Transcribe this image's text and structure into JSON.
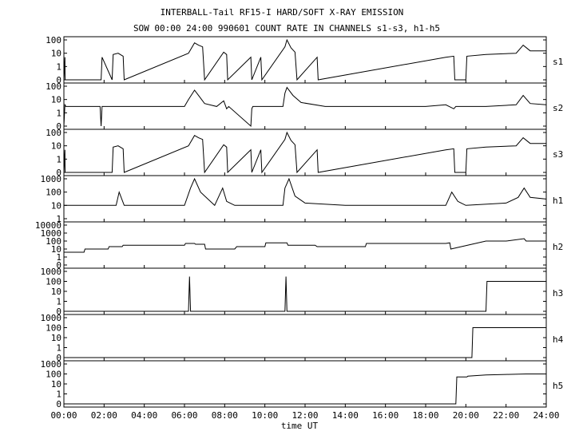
{
  "header": {
    "title": "INTERBALL-Tail RF15-I HARD/SOFT X-RAY EMISSION",
    "subtitle": "SOW 00:00 24:00 990601  COUNT RATE IN CHANNELS s1-s3, h1-h5"
  },
  "chart_data": {
    "type": "line",
    "title": "INTERBALL-Tail RF15-I HARD/SOFT X-RAY EMISSION",
    "subtitle": "SOW 00:00 24:00 990601  COUNT RATE IN CHANNELS s1-s3, h1-h5",
    "xlabel": "time UT",
    "x_ticks": [
      "00:00",
      "02:00",
      "04:00",
      "06:00",
      "08:00",
      "10:00",
      "12:00",
      "14:00",
      "16:00",
      "18:00",
      "20:00",
      "22:00",
      "24:00"
    ],
    "xlim_hours": [
      0,
      24
    ],
    "y_scale": "log",
    "grid": false,
    "panels": [
      {
        "name": "s1",
        "y_ticks": [
          "0",
          "1",
          "10",
          "100"
        ],
        "x": [
          0,
          0.05,
          0.06,
          1.85,
          1.9,
          2.4,
          2.45,
          2.7,
          2.95,
          3.0,
          6.2,
          6.5,
          6.7,
          6.9,
          7.0,
          7.95,
          8.1,
          8.15,
          9.3,
          9.35,
          9.8,
          9.85,
          11.0,
          11.1,
          11.3,
          11.5,
          11.6,
          12.6,
          12.65,
          19.0,
          19.4,
          19.45,
          20.0,
          20.05,
          21.0,
          22.5,
          22.85,
          23.2,
          24.0
        ],
        "values": [
          0,
          5,
          0,
          0,
          5,
          0,
          8,
          10,
          6,
          0,
          10,
          60,
          40,
          30,
          0,
          12,
          8,
          0,
          5,
          0,
          5,
          0,
          30,
          100,
          25,
          12,
          0,
          5,
          0,
          5,
          6,
          0,
          0,
          6,
          8,
          10,
          40,
          15,
          15
        ]
      },
      {
        "name": "s2",
        "y_ticks": [
          "0",
          "1",
          "10",
          "100"
        ],
        "x": [
          0,
          0.05,
          0.1,
          1.8,
          1.85,
          1.9,
          3.0,
          6.0,
          6.2,
          6.5,
          6.7,
          7.0,
          7.6,
          7.95,
          8.1,
          8.2,
          9.3,
          9.35,
          9.4,
          10.9,
          11.0,
          11.1,
          11.4,
          11.8,
          13.0,
          16.0,
          18.0,
          19.0,
          19.4,
          19.5,
          20.0,
          20.05,
          21.0,
          22.5,
          22.85,
          23.2,
          24.0
        ],
        "values": [
          0,
          4,
          3,
          3,
          0,
          3,
          3,
          3,
          10,
          50,
          20,
          5,
          3,
          8,
          2,
          3,
          0,
          2,
          3,
          3,
          30,
          80,
          20,
          6,
          3,
          3,
          3,
          4,
          2,
          3,
          3,
          3,
          3,
          4,
          20,
          5,
          4
        ]
      },
      {
        "name": "s3",
        "y_ticks": [
          "0",
          "1",
          "10",
          "100"
        ],
        "x": [
          0,
          0.05,
          0.06,
          2.4,
          2.45,
          2.7,
          2.95,
          3.0,
          6.2,
          6.5,
          6.7,
          6.9,
          7.0,
          7.95,
          8.1,
          8.15,
          9.3,
          9.35,
          9.8,
          9.85,
          11.0,
          11.1,
          11.3,
          11.5,
          11.6,
          12.6,
          12.65,
          19.0,
          19.4,
          19.45,
          20.0,
          20.05,
          21.0,
          22.5,
          22.85,
          23.2,
          24.0
        ],
        "values": [
          0,
          5,
          0,
          0,
          8,
          10,
          6,
          0,
          10,
          60,
          40,
          30,
          0,
          12,
          8,
          0,
          5,
          0,
          5,
          0,
          30,
          100,
          25,
          12,
          0,
          5,
          0,
          5,
          6,
          0,
          0,
          6,
          8,
          10,
          40,
          15,
          15
        ]
      },
      {
        "name": "h1",
        "y_ticks": [
          "1",
          "10",
          "100",
          "1000"
        ],
        "x": [
          0,
          1.0,
          2.0,
          2.6,
          2.75,
          3.0,
          4.0,
          5.0,
          6.0,
          6.3,
          6.5,
          6.8,
          7.5,
          7.9,
          8.1,
          8.5,
          10.0,
          10.9,
          11.0,
          11.2,
          11.5,
          12.0,
          14.0,
          16.0,
          18.0,
          19.0,
          19.3,
          19.6,
          20.0,
          22.0,
          22.6,
          22.9,
          23.2,
          24.0
        ],
        "values": [
          10,
          10,
          10,
          10,
          100,
          10,
          10,
          10,
          10,
          200,
          1000,
          100,
          10,
          200,
          20,
          10,
          10,
          10,
          200,
          1000,
          50,
          15,
          10,
          10,
          10,
          10,
          100,
          20,
          10,
          15,
          40,
          200,
          40,
          30
        ]
      },
      {
        "name": "h2",
        "y_ticks": [
          "0",
          "1",
          "10",
          "100",
          "1000",
          "10000"
        ],
        "x": [
          0,
          1.0,
          1.05,
          2.2,
          2.25,
          2.9,
          2.95,
          6.0,
          6.05,
          6.5,
          6.55,
          7.0,
          7.05,
          8.5,
          8.6,
          10.0,
          10.05,
          11.1,
          11.15,
          12.5,
          12.6,
          15.0,
          15.05,
          19.0,
          19.2,
          19.25,
          21.0,
          22.0,
          22.9,
          23.0,
          24.0
        ],
        "values": [
          4,
          4,
          10,
          10,
          20,
          20,
          30,
          30,
          50,
          50,
          40,
          40,
          10,
          10,
          20,
          20,
          60,
          60,
          30,
          30,
          20,
          20,
          50,
          50,
          60,
          10,
          100,
          100,
          200,
          100,
          100
        ]
      },
      {
        "name": "h3",
        "y_ticks": [
          "0",
          "1",
          "10",
          "100",
          "1000"
        ],
        "x": [
          0,
          6.2,
          6.25,
          6.3,
          11.0,
          11.05,
          11.1,
          21.0,
          21.05,
          22.0,
          23.0,
          24.0
        ],
        "values": [
          0,
          0,
          300,
          0,
          0,
          300,
          0,
          0,
          100,
          100,
          100,
          100
        ]
      },
      {
        "name": "h4",
        "y_ticks": [
          "0",
          "1",
          "10",
          "100",
          "1000"
        ],
        "x": [
          0,
          20.3,
          20.35,
          21.0,
          22.0,
          23.0,
          24.0
        ],
        "values": [
          0,
          0,
          100,
          100,
          100,
          100,
          100
        ]
      },
      {
        "name": "h5",
        "y_ticks": [
          "0",
          "1",
          "10",
          "100",
          "1000"
        ],
        "x": [
          0,
          19.5,
          19.55,
          20.05,
          20.1,
          21.0,
          22.0,
          23.0,
          24.0
        ],
        "values": [
          0,
          0,
          50,
          50,
          60,
          80,
          90,
          100,
          100
        ]
      }
    ]
  }
}
